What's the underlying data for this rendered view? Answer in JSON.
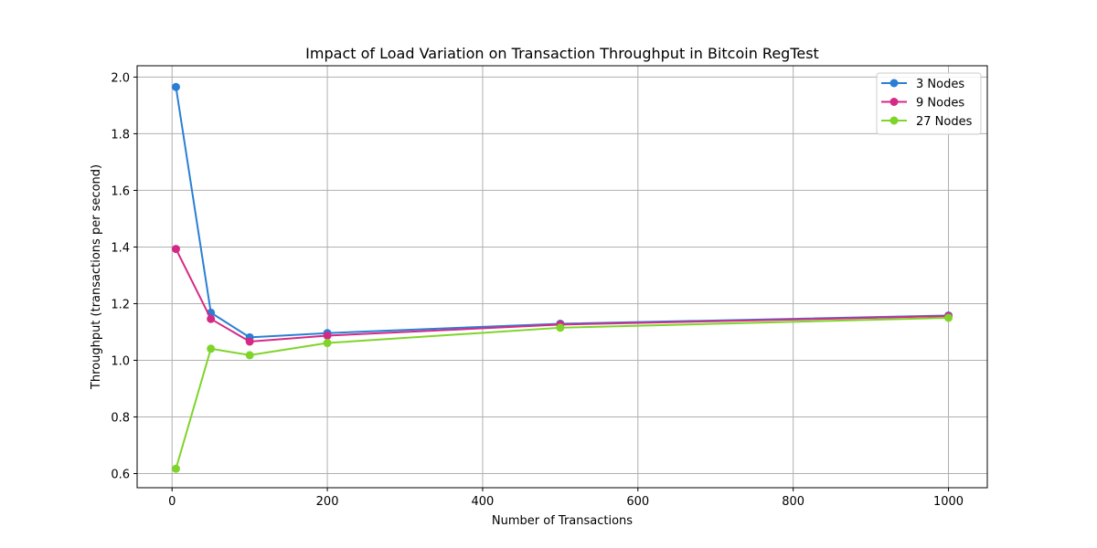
{
  "chart_data": {
    "type": "line",
    "title": "Impact of Load Variation on Transaction Throughput in Bitcoin RegTest",
    "xlabel": "Number of Transactions",
    "ylabel": "Throughput (transactions per second)",
    "xlim": [
      -45,
      1050
    ],
    "ylim": [
      0.55,
      2.04
    ],
    "xticks": [
      0,
      200,
      400,
      600,
      800,
      1000
    ],
    "xtick_labels": [
      "0",
      "200",
      "400",
      "600",
      "800",
      "1000"
    ],
    "yticks": [
      0.6,
      0.8,
      1.0,
      1.2,
      1.4,
      1.6,
      1.8,
      2.0
    ],
    "ytick_labels": [
      "0.6",
      "0.8",
      "1.0",
      "1.2",
      "1.4",
      "1.6",
      "1.8",
      "2.0"
    ],
    "grid": true,
    "legend_position": "top-right",
    "x": [
      5,
      50,
      100,
      200,
      500,
      1000
    ],
    "series": [
      {
        "name": "3 Nodes",
        "color": "#2a7fd4",
        "values": [
          1.965,
          1.168,
          1.081,
          1.096,
          1.129,
          1.158
        ]
      },
      {
        "name": "9 Nodes",
        "color": "#d42a85",
        "values": [
          1.393,
          1.146,
          1.066,
          1.087,
          1.126,
          1.156
        ]
      },
      {
        "name": "27 Nodes",
        "color": "#7fd42a",
        "values": [
          0.617,
          1.041,
          1.018,
          1.061,
          1.115,
          1.15
        ]
      }
    ]
  }
}
